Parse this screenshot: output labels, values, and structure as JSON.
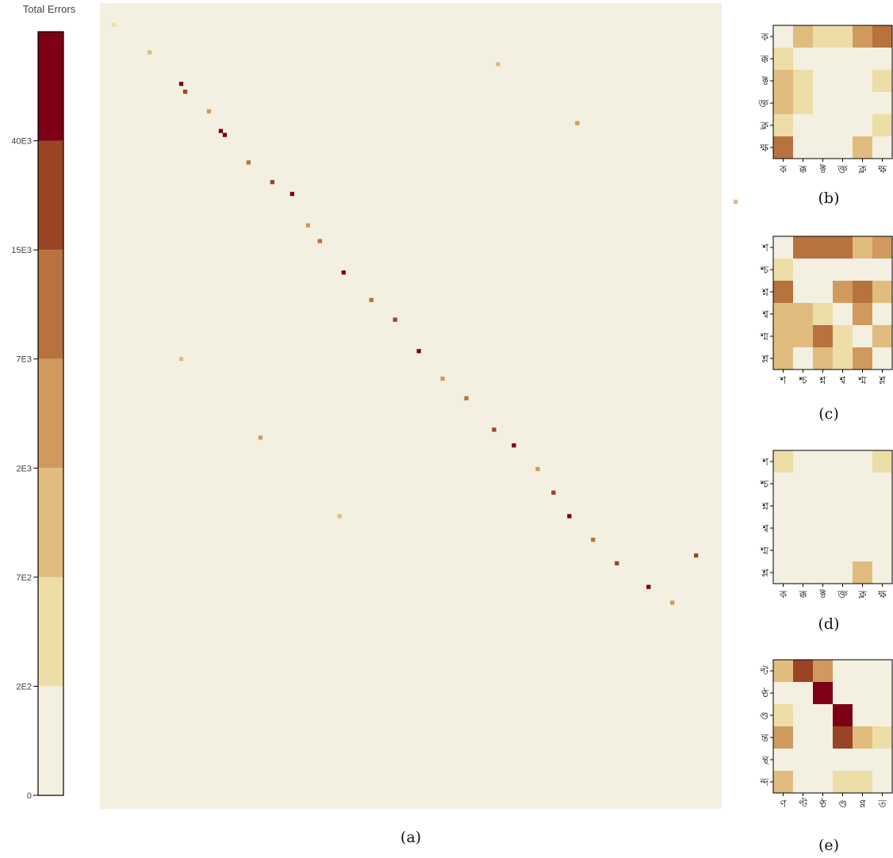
{
  "colors": {
    "background": "#F3F0E2",
    "levels": [
      "#F3F0E2",
      "#EDDEA8",
      "#E0BC7E",
      "#D09A5E",
      "#B8723E",
      "#9A4426",
      "#7D0016"
    ]
  },
  "colorbar": {
    "title": "Total Errors",
    "ticks": [
      "0",
      "2E2",
      "7E2",
      "2E3",
      "7E3",
      "15E3",
      "40E3"
    ]
  },
  "chart_data": [
    {
      "type": "heatmap",
      "caption": "(a)",
      "grid_size": [
        157,
        205
      ],
      "note_cells": "sparse error map: cells given as [row, col, level], level 1-6 on colorbar scale",
      "cells": [
        [
          5,
          3,
          1
        ],
        [
          12,
          12,
          2
        ],
        [
          20,
          20,
          6
        ],
        [
          22,
          21,
          5
        ],
        [
          27,
          27,
          3
        ],
        [
          32,
          30,
          6
        ],
        [
          33,
          31,
          6
        ],
        [
          40,
          37,
          4
        ],
        [
          45,
          43,
          5
        ],
        [
          48,
          48,
          6
        ],
        [
          56,
          52,
          3
        ],
        [
          60,
          55,
          4
        ],
        [
          68,
          61,
          6
        ],
        [
          75,
          68,
          4
        ],
        [
          80,
          74,
          5
        ],
        [
          88,
          80,
          6
        ],
        [
          95,
          86,
          3
        ],
        [
          100,
          92,
          4
        ],
        [
          108,
          99,
          5
        ],
        [
          112,
          104,
          6
        ],
        [
          118,
          110,
          3
        ],
        [
          124,
          114,
          5
        ],
        [
          130,
          118,
          6
        ],
        [
          136,
          124,
          4
        ],
        [
          142,
          130,
          5
        ],
        [
          148,
          138,
          6
        ],
        [
          152,
          144,
          3
        ],
        [
          15,
          100,
          2
        ],
        [
          30,
          120,
          3
        ],
        [
          50,
          160,
          2
        ],
        [
          70,
          180,
          4
        ],
        [
          90,
          20,
          2
        ],
        [
          110,
          40,
          3
        ],
        [
          130,
          60,
          2
        ],
        [
          140,
          150,
          5
        ]
      ]
    },
    {
      "type": "heatmap",
      "caption": "(b)",
      "x_labels": [
        "ক",
        "ক্ক",
        "ক্ট",
        "ক্ত",
        "ক্ল",
        "ক্ষ"
      ],
      "y_labels": [
        "ক",
        "ক্ক",
        "ক্ট",
        "ক্ত",
        "ক্ল",
        "ক্ষ"
      ],
      "levels": [
        [
          0,
          2,
          1,
          1,
          3,
          4
        ],
        [
          1,
          0,
          0,
          0,
          0,
          0
        ],
        [
          2,
          1,
          0,
          0,
          0,
          1
        ],
        [
          2,
          1,
          0,
          0,
          0,
          0
        ],
        [
          1,
          0,
          0,
          0,
          0,
          1
        ],
        [
          4,
          0,
          0,
          0,
          2,
          0
        ]
      ]
    },
    {
      "type": "heatmap",
      "caption": "(c)",
      "x_labels": [
        "শ",
        "শ্চ",
        "শ্ন",
        "শ্ব",
        "শ্ম",
        "শ্ল"
      ],
      "y_labels": [
        "শ",
        "শ্চ",
        "শ্ন",
        "শ্ব",
        "শ্ম",
        "শ্ল"
      ],
      "levels": [
        [
          0,
          4,
          4,
          4,
          2,
          3
        ],
        [
          1,
          0,
          0,
          0,
          0,
          0
        ],
        [
          4,
          0,
          0,
          3,
          4,
          2
        ],
        [
          2,
          2,
          1,
          0,
          3,
          0
        ],
        [
          2,
          2,
          4,
          1,
          0,
          2
        ],
        [
          2,
          0,
          2,
          1,
          3,
          0
        ]
      ]
    },
    {
      "type": "heatmap",
      "caption": "(d)",
      "x_labels": [
        "ক",
        "ক্ক",
        "ক্ট",
        "ক্ত",
        "ক্ল",
        "ক্ষ"
      ],
      "y_labels": [
        "শ",
        "শ্চ",
        "শ্ন",
        "শ্ব",
        "শ্ম",
        "শ্ল"
      ],
      "levels": [
        [
          1,
          0,
          0,
          0,
          0,
          1
        ],
        [
          0,
          0,
          0,
          0,
          0,
          0
        ],
        [
          0,
          0,
          0,
          0,
          0,
          0
        ],
        [
          0,
          0,
          0,
          0,
          0,
          0
        ],
        [
          0,
          0,
          0,
          0,
          0,
          0
        ],
        [
          0,
          0,
          0,
          0,
          2,
          0
        ]
      ]
    },
    {
      "type": "heatmap",
      "caption": "(e)",
      "x_labels": [
        "ণ",
        "ণ্ট",
        "ণ্ঠ",
        "ণ্ড",
        "ণ্ণ",
        "ত"
      ],
      "y_labels": [
        "ণ্ট",
        "ণ্ঠ",
        "ণ্ড",
        "ন্ত",
        "ন্থ",
        "ন্দ"
      ],
      "levels": [
        [
          2,
          5,
          3,
          0,
          0,
          0
        ],
        [
          0,
          0,
          6,
          0,
          0,
          0
        ],
        [
          1,
          0,
          0,
          6,
          0,
          0
        ],
        [
          3,
          0,
          0,
          5,
          2,
          1
        ],
        [
          0,
          0,
          0,
          0,
          0,
          0
        ],
        [
          2,
          0,
          0,
          1,
          1,
          0
        ]
      ]
    }
  ]
}
